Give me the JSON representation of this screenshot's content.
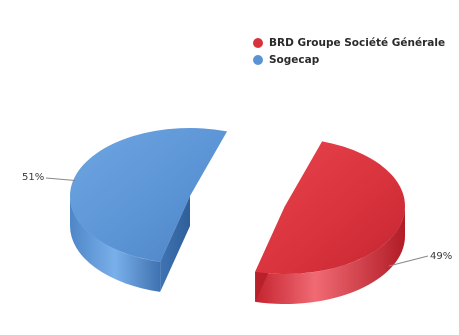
{
  "chart_data": {
    "type": "pie",
    "title": "",
    "legend_position": "top-right",
    "slices": [
      {
        "name": "BRD Groupe Société Générale",
        "value": 49,
        "label": "49%",
        "color": "#d8323c"
      },
      {
        "name": "Sogecap",
        "value": 51,
        "label": "51%",
        "color": "#5a93d4"
      }
    ]
  }
}
